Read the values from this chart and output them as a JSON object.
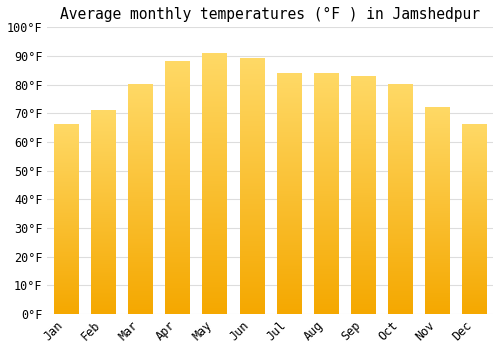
{
  "title": "Average monthly temperatures (°F ) in Jamshedpur",
  "months": [
    "Jan",
    "Feb",
    "Mar",
    "Apr",
    "May",
    "Jun",
    "Jul",
    "Aug",
    "Sep",
    "Oct",
    "Nov",
    "Dec"
  ],
  "values": [
    66,
    71,
    80,
    88,
    91,
    89,
    84,
    84,
    83,
    80,
    72,
    66
  ],
  "bar_color_bottom": "#F5A800",
  "bar_color_top": "#FFD966",
  "ylim": [
    0,
    100
  ],
  "yticks": [
    0,
    10,
    20,
    30,
    40,
    50,
    60,
    70,
    80,
    90,
    100
  ],
  "ytick_labels": [
    "0°F",
    "10°F",
    "20°F",
    "30°F",
    "40°F",
    "50°F",
    "60°F",
    "70°F",
    "80°F",
    "90°F",
    "100°F"
  ],
  "background_color": "#FFFFFF",
  "grid_color": "#DDDDDD",
  "title_fontsize": 10.5,
  "tick_fontsize": 8.5,
  "figsize": [
    5.0,
    3.5
  ],
  "dpi": 100
}
